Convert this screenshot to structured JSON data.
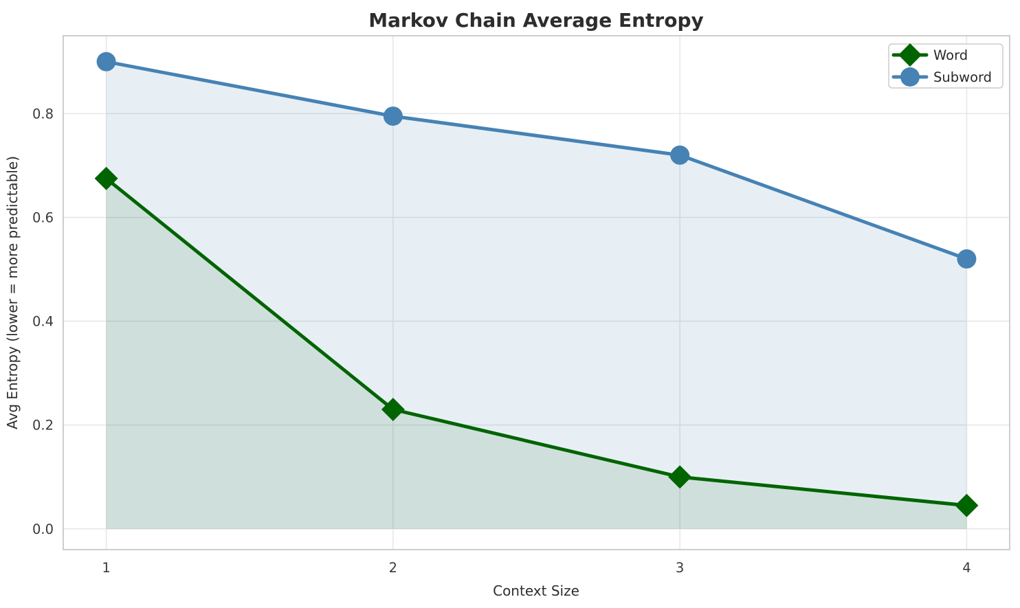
{
  "chart_data": {
    "type": "line",
    "title": "Markov Chain Average Entropy",
    "xlabel": "Context Size",
    "ylabel": "Avg Entropy (lower = more predictable)",
    "x": [
      1,
      2,
      3,
      4
    ],
    "series": [
      {
        "name": "Word",
        "marker": "diamond",
        "color": "#006400",
        "fill_color": "rgba(0,100,0,0.10)",
        "values": [
          0.675,
          0.23,
          0.1,
          0.045
        ]
      },
      {
        "name": "Subword",
        "marker": "circle",
        "color": "#4682b4",
        "fill_color": "rgba(70,130,180,0.13)",
        "values": [
          0.9,
          0.795,
          0.72,
          0.52
        ]
      }
    ],
    "fill_baseline": 0,
    "area_fill": true,
    "xticks": {
      "values": [
        1,
        2,
        3,
        4
      ],
      "labels": [
        "1",
        "2",
        "3",
        "4"
      ]
    },
    "yticks": {
      "values": [
        0,
        0.2,
        0.4,
        0.6,
        0.8
      ],
      "labels": [
        "0.0",
        "0.2",
        "0.4",
        "0.6",
        "0.8"
      ]
    },
    "xlim": [
      0.85,
      4.15
    ],
    "ylim": [
      -0.04,
      0.95
    ],
    "grid": true,
    "legend_position": "top-right",
    "style": {
      "grid_color": "#e6e6e6",
      "spine_color": "#c9c9c9",
      "background": "#ffffff",
      "line_width": 5,
      "marker_size": 14,
      "legend_border": "#cccccc",
      "legend_bg": "#ffffff"
    }
  }
}
